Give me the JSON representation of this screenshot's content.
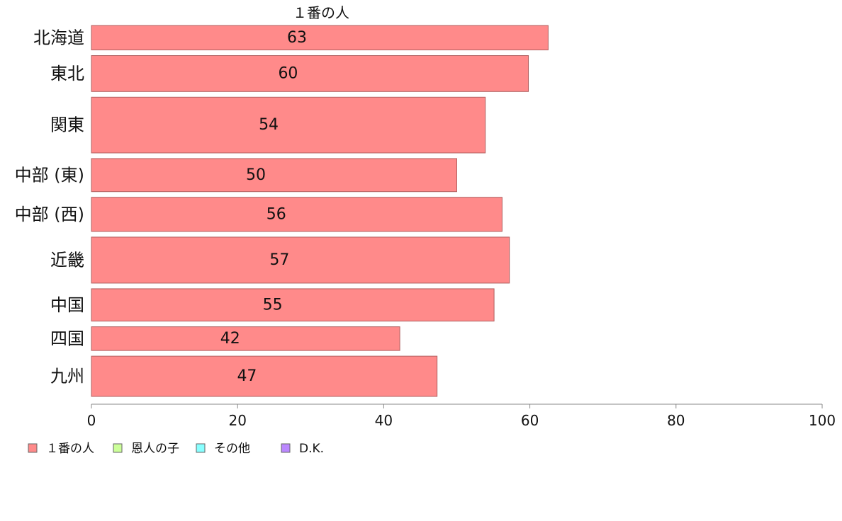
{
  "chart_data": {
    "type": "bar",
    "orientation": "horizontal",
    "series_header": "１番の人",
    "categories": [
      "北海道",
      "東北",
      "関東",
      "中部 (東)",
      "中部 (西)",
      "近畿",
      "中国",
      "四国",
      "九州"
    ],
    "series": [
      {
        "name": "１番の人",
        "values": [
          62.5,
          59.8,
          53.9,
          50.0,
          56.2,
          57.2,
          55.1,
          42.2,
          47.3
        ],
        "labels": [
          "63",
          "60",
          "54",
          "50",
          "56",
          "57",
          "55",
          "42",
          "47"
        ]
      }
    ],
    "bar_weights": [
      0.68,
      1.0,
      1.55,
      0.92,
      0.95,
      1.28,
      0.9,
      0.66,
      1.12
    ],
    "xlim": [
      0,
      100
    ],
    "xticks": [
      "0",
      "20",
      "40",
      "60",
      "80",
      "100"
    ],
    "legend": {
      "placement": "bottom-left",
      "entries": [
        {
          "label": "１番の人",
          "color": "#ff8a8a"
        },
        {
          "label": "恩人の子",
          "color": "#ccff99"
        },
        {
          "label": "その他",
          "color": "#88ffff"
        },
        {
          "label": "D.K.",
          "color": "#bb88ff"
        }
      ]
    },
    "grid": false
  }
}
